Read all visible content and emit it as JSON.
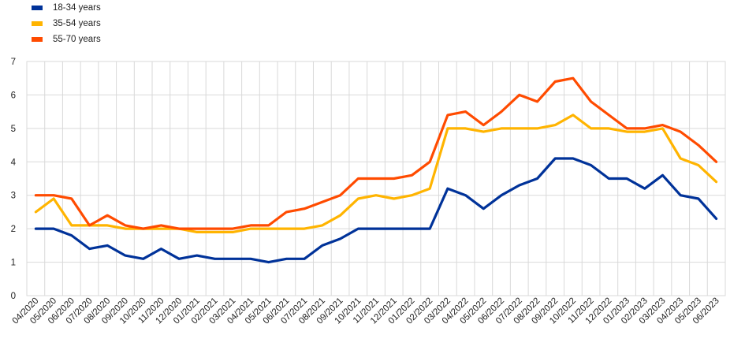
{
  "chart_data": {
    "type": "line",
    "categories": [
      "04/2020",
      "05/2020",
      "06/2020",
      "07/2020",
      "08/2020",
      "09/2020",
      "10/2020",
      "11/2020",
      "12/2020",
      "01/2021",
      "02/2021",
      "03/2021",
      "04/2021",
      "05/2021",
      "06/2021",
      "07/2021",
      "08/2021",
      "09/2021",
      "10/2021",
      "11/2021",
      "12/2021",
      "01/2022",
      "02/2022",
      "03/2022",
      "04/2022",
      "05/2022",
      "06/2022",
      "07/2022",
      "08/2022",
      "09/2022",
      "10/2022",
      "11/2022",
      "12/2022",
      "01/2023",
      "02/2023",
      "03/2023",
      "04/2023",
      "05/2023",
      "06/2023"
    ],
    "series": [
      {
        "name": "18-34 years",
        "color": "#003299",
        "values": [
          2.0,
          2.0,
          1.8,
          1.4,
          1.5,
          1.2,
          1.1,
          1.4,
          1.1,
          1.2,
          1.1,
          1.1,
          1.1,
          1.0,
          1.1,
          1.1,
          1.5,
          1.7,
          2.0,
          2.0,
          2.0,
          2.0,
          2.0,
          3.2,
          3.0,
          2.6,
          3.0,
          3.3,
          3.5,
          4.1,
          4.1,
          3.9,
          3.5,
          3.5,
          3.2,
          3.6,
          3.0,
          2.9,
          2.3
        ]
      },
      {
        "name": "35-54 years",
        "color": "#FFB400",
        "values": [
          2.5,
          2.9,
          2.1,
          2.1,
          2.1,
          2.0,
          2.0,
          2.0,
          2.0,
          1.9,
          1.9,
          1.9,
          2.0,
          2.0,
          2.0,
          2.0,
          2.1,
          2.4,
          2.9,
          3.0,
          2.9,
          3.0,
          3.2,
          5.0,
          5.0,
          4.9,
          5.0,
          5.0,
          5.0,
          5.1,
          5.4,
          5.0,
          5.0,
          4.9,
          4.9,
          5.0,
          4.1,
          3.9,
          3.4
        ]
      },
      {
        "name": "55-70 years",
        "color": "#FF4B00",
        "values": [
          3.0,
          3.0,
          2.9,
          2.1,
          2.4,
          2.1,
          2.0,
          2.1,
          2.0,
          2.0,
          2.0,
          2.0,
          2.1,
          2.1,
          2.5,
          2.6,
          2.8,
          3.0,
          3.5,
          3.5,
          3.5,
          3.6,
          4.0,
          5.4,
          5.5,
          5.1,
          5.5,
          6.0,
          5.8,
          6.4,
          6.5,
          5.8,
          5.4,
          5.0,
          5.0,
          5.1,
          4.9,
          4.5,
          4.0
        ]
      }
    ],
    "ylim": [
      0,
      7
    ],
    "yticks": [
      "0",
      "1",
      "2",
      "3",
      "4",
      "5",
      "6",
      "7"
    ],
    "grid": true,
    "legend_position": "top-left"
  }
}
